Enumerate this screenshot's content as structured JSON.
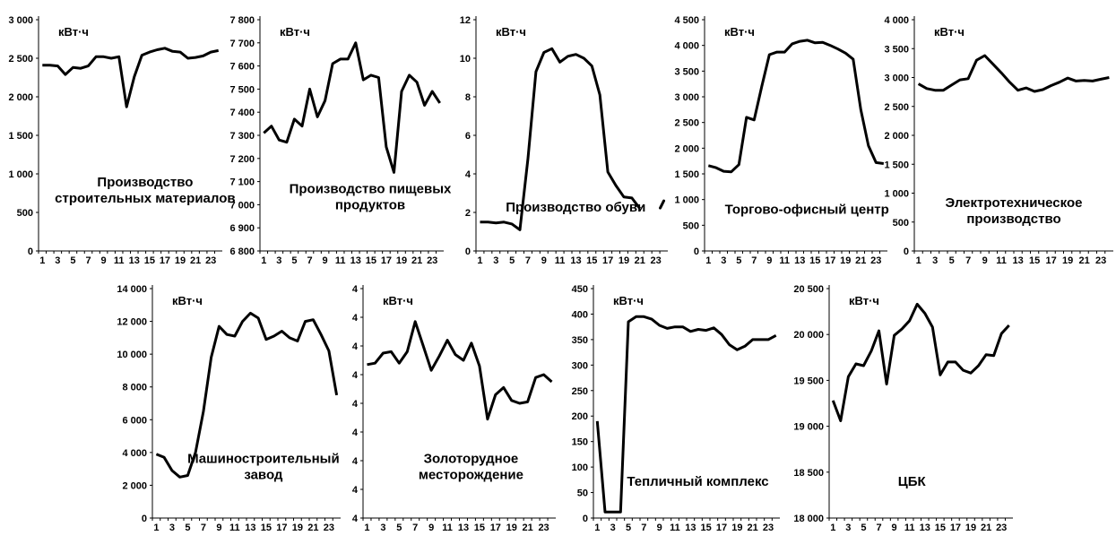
{
  "colors": {
    "line": "#000000",
    "axis": "#000000",
    "background": "#ffffff"
  },
  "chart_data": [
    {
      "type": "line",
      "title": "Производство строительных материалов",
      "title_lines": [
        "Производство",
        "строительных материалов"
      ],
      "unit_label": "кВт·ч",
      "x": [
        1,
        2,
        3,
        4,
        5,
        6,
        7,
        8,
        9,
        10,
        11,
        12,
        13,
        14,
        15,
        16,
        17,
        18,
        19,
        20,
        21,
        22,
        23,
        24
      ],
      "x_tick_labels": [
        "1",
        "3",
        "5",
        "7",
        "9",
        "11",
        "13",
        "15",
        "17",
        "19",
        "21",
        "23"
      ],
      "y_tick_labels": [
        "0",
        "500",
        "1 000",
        "1 500",
        "2 000",
        "2 500",
        "3 000"
      ],
      "ylim": [
        0,
        3000
      ],
      "values": [
        2410,
        2410,
        2400,
        2290,
        2380,
        2370,
        2400,
        2520,
        2520,
        2500,
        2520,
        1870,
        2260,
        2540,
        2580,
        2610,
        2630,
        2590,
        2580,
        2500,
        2510,
        2530,
        2580,
        2600
      ]
    },
    {
      "type": "line",
      "title": "Производство пищевых продуктов",
      "title_lines": [
        "Производство пищевых",
        "продуктов"
      ],
      "unit_label": "кВт·ч",
      "x": [
        1,
        2,
        3,
        4,
        5,
        6,
        7,
        8,
        9,
        10,
        11,
        12,
        13,
        14,
        15,
        16,
        17,
        18,
        19,
        20,
        21,
        22,
        23,
        24
      ],
      "x_tick_labels": [
        "1",
        "3",
        "5",
        "7",
        "9",
        "11",
        "13",
        "15",
        "17",
        "19",
        "21",
        "23"
      ],
      "y_tick_labels": [
        "6 800",
        "6 900",
        "7 000",
        "7 100",
        "7 200",
        "7 300",
        "7 400",
        "7 500",
        "7 600",
        "7 700",
        "7 800"
      ],
      "ylim": [
        6800,
        7800
      ],
      "values": [
        7310,
        7340,
        7280,
        7270,
        7370,
        7340,
        7500,
        7380,
        7450,
        7610,
        7630,
        7630,
        7700,
        7540,
        7560,
        7550,
        7250,
        7140,
        7490,
        7560,
        7530,
        7430,
        7490,
        7440
      ]
    },
    {
      "type": "line",
      "title": "Производство обуви",
      "title_lines": [
        "Производство обуви"
      ],
      "unit_label": "кВт·ч",
      "x": [
        1,
        2,
        3,
        4,
        5,
        6,
        7,
        8,
        9,
        10,
        11,
        12,
        13,
        14,
        15,
        16,
        17,
        18,
        19,
        20,
        21,
        22,
        23,
        24
      ],
      "x_tick_labels": [
        "1",
        "3",
        "5",
        "7",
        "9",
        "11",
        "13",
        "15",
        "17",
        "19",
        "21",
        "23"
      ],
      "y_tick_labels": [
        "0",
        "2",
        "4",
        "6",
        "8",
        "10",
        "12"
      ],
      "ylim": [
        0,
        12
      ],
      "values": [
        1.5,
        1.5,
        1.45,
        1.5,
        1.4,
        1.1,
        4.8,
        9.3,
        10.3,
        10.5,
        9.8,
        10.1,
        10.2,
        10.0,
        9.6,
        8.1,
        4.1,
        3.4,
        2.8,
        2.75,
        2.2,
        null,
        null,
        2.6
      ]
    },
    {
      "type": "line",
      "title": "Торгово-офисный центр",
      "title_lines": [
        "Торгово-офисный центр"
      ],
      "unit_label": "кВт·ч",
      "x": [
        1,
        2,
        3,
        4,
        5,
        6,
        7,
        8,
        9,
        10,
        11,
        12,
        13,
        14,
        15,
        16,
        17,
        18,
        19,
        20,
        21,
        22,
        23,
        24
      ],
      "x_tick_labels": [
        "1",
        "3",
        "5",
        "7",
        "9",
        "11",
        "13",
        "15",
        "17",
        "19",
        "21",
        "23"
      ],
      "y_tick_labels": [
        "0",
        "500",
        "1 000",
        "1 500",
        "2 000",
        "2 500",
        "3 000",
        "3 500",
        "4 000",
        "4 500"
      ],
      "ylim": [
        0,
        4500
      ],
      "values": [
        1660,
        1620,
        1550,
        1540,
        1680,
        2600,
        2550,
        3200,
        3820,
        3870,
        3870,
        4030,
        4080,
        4100,
        4050,
        4060,
        4000,
        3930,
        3850,
        3730,
        2750,
        2050,
        1720,
        1700
      ]
    },
    {
      "type": "line",
      "title": "Электротехническое производство",
      "title_lines": [
        "Электротехническое",
        "производство"
      ],
      "unit_label": "кВт·ч",
      "x": [
        1,
        2,
        3,
        4,
        5,
        6,
        7,
        8,
        9,
        10,
        11,
        12,
        13,
        14,
        15,
        16,
        17,
        18,
        19,
        20,
        21,
        22,
        23,
        24
      ],
      "x_tick_labels": [
        "1",
        "3",
        "5",
        "7",
        "9",
        "11",
        "13",
        "15",
        "17",
        "19",
        "21",
        "23"
      ],
      "y_tick_labels": [
        "0",
        "500",
        "1 000",
        "1 500",
        "2 000",
        "2 500",
        "3 000",
        "3 500",
        "4 000"
      ],
      "ylim": [
        0,
        4000
      ],
      "values": [
        2890,
        2810,
        2780,
        2780,
        2870,
        2960,
        2980,
        3300,
        3380,
        3230,
        3080,
        2920,
        2780,
        2820,
        2760,
        2790,
        2860,
        2920,
        2990,
        2940,
        2950,
        2940,
        2970,
        3000
      ]
    },
    {
      "type": "line",
      "title": "Машиностроительный завод",
      "title_lines": [
        "Машиностроительный",
        "завод"
      ],
      "unit_label": "кВт·ч",
      "x": [
        1,
        2,
        3,
        4,
        5,
        6,
        7,
        8,
        9,
        10,
        11,
        12,
        13,
        14,
        15,
        16,
        17,
        18,
        19,
        20,
        21,
        22,
        23,
        24
      ],
      "x_tick_labels": [
        "1",
        "3",
        "5",
        "7",
        "9",
        "11",
        "13",
        "15",
        "17",
        "19",
        "21",
        "23"
      ],
      "y_tick_labels": [
        "0",
        "2 000",
        "4 000",
        "6 000",
        "8 000",
        "10 000",
        "12 000",
        "14 000"
      ],
      "ylim": [
        0,
        14000
      ],
      "values": [
        3900,
        3700,
        2900,
        2500,
        2600,
        4000,
        6500,
        9800,
        11700,
        11200,
        11100,
        12000,
        12500,
        12200,
        10900,
        11100,
        11400,
        11000,
        10800,
        12000,
        12100,
        11200,
        10200,
        7500
      ]
    },
    {
      "type": "line",
      "title": "Золоторудное месторождение",
      "title_lines": [
        "Золоторудное",
        "месторождение"
      ],
      "unit_label": "кВт·ч",
      "x": [
        1,
        2,
        3,
        4,
        5,
        6,
        7,
        8,
        9,
        10,
        11,
        12,
        13,
        14,
        15,
        16,
        17,
        18,
        19,
        20,
        21,
        22,
        23,
        24
      ],
      "x_tick_labels": [
        "1",
        "3",
        "5",
        "7",
        "9",
        "11",
        "13",
        "15",
        "17",
        "19",
        "21",
        "23"
      ],
      "y_tick_labels": [
        "4",
        "4",
        "4",
        "4",
        "4",
        "4",
        "4",
        "4",
        "4"
      ],
      "ylim": [
        0,
        8
      ],
      "values": [
        5.35,
        5.4,
        5.75,
        5.8,
        5.4,
        5.8,
        6.85,
        6.0,
        5.15,
        5.65,
        6.2,
        5.7,
        5.5,
        6.1,
        5.3,
        3.45,
        4.3,
        4.55,
        4.1,
        4.0,
        4.05,
        4.9,
        5.0,
        4.75
      ]
    },
    {
      "type": "line",
      "title": "Тепличный комплекс",
      "title_lines": [
        "Тепличный комплекс"
      ],
      "unit_label": "кВт·ч",
      "x": [
        1,
        2,
        3,
        4,
        5,
        6,
        7,
        8,
        9,
        10,
        11,
        12,
        13,
        14,
        15,
        16,
        17,
        18,
        19,
        20,
        21,
        22,
        23,
        24
      ],
      "x_tick_labels": [
        "1",
        "3",
        "5",
        "7",
        "9",
        "11",
        "13",
        "15",
        "17",
        "19",
        "21",
        "23"
      ],
      "y_tick_labels": [
        "0",
        "50",
        "100",
        "150",
        "200",
        "250",
        "300",
        "350",
        "400",
        "450"
      ],
      "ylim": [
        0,
        450
      ],
      "values": [
        190,
        12,
        12,
        12,
        385,
        395,
        395,
        390,
        378,
        372,
        375,
        375,
        366,
        370,
        368,
        373,
        360,
        340,
        330,
        337,
        350,
        350,
        350,
        358
      ]
    },
    {
      "type": "line",
      "title": "ЦБК",
      "title_lines": [
        "ЦБК"
      ],
      "unit_label": "кВт·ч",
      "x": [
        1,
        2,
        3,
        4,
        5,
        6,
        7,
        8,
        9,
        10,
        11,
        12,
        13,
        14,
        15,
        16,
        17,
        18,
        19,
        20,
        21,
        22,
        23,
        24
      ],
      "x_tick_labels": [
        "1",
        "3",
        "5",
        "7",
        "9",
        "11",
        "13",
        "15",
        "17",
        "19",
        "21",
        "23"
      ],
      "y_tick_labels": [
        "18 000",
        "18 500",
        "19 000",
        "19 500",
        "20 000",
        "20 500"
      ],
      "ylim": [
        18000,
        20500
      ],
      "values": [
        19280,
        19060,
        19540,
        19680,
        19660,
        19820,
        20040,
        19460,
        19990,
        20060,
        20150,
        20330,
        20230,
        20080,
        19560,
        19700,
        19700,
        19610,
        19580,
        19660,
        19780,
        19770,
        20010,
        20100
      ]
    }
  ]
}
